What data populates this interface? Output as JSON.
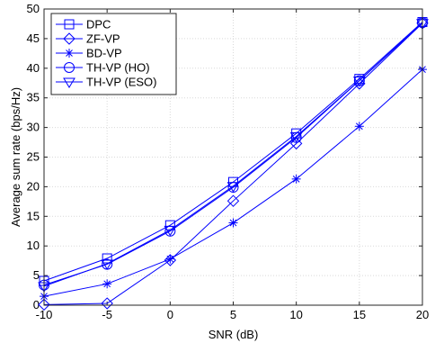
{
  "chart_data": {
    "type": "line",
    "xlabel": "SNR (dB)",
    "ylabel": "Average sum rate (bps/Hz)",
    "xlim": [
      -10,
      20
    ],
    "ylim": [
      0,
      50
    ],
    "x_ticks": [
      -10,
      -5,
      0,
      5,
      10,
      15,
      20
    ],
    "y_ticks": [
      0,
      5,
      10,
      15,
      20,
      25,
      30,
      35,
      40,
      45,
      50
    ],
    "grid": true,
    "legend_position": "top-left",
    "line_color": "#0000ff",
    "x": [
      -10,
      -5,
      0,
      5,
      10,
      15,
      20
    ],
    "series": [
      {
        "name": "DPC",
        "marker": "square",
        "values": [
          4.1,
          7.9,
          13.5,
          20.8,
          29.0,
          38.2,
          47.8
        ]
      },
      {
        "name": "ZF-VP",
        "marker": "diamond",
        "values": [
          0.1,
          0.3,
          7.6,
          17.6,
          27.3,
          37.4,
          47.6
        ]
      },
      {
        "name": "BD-VP",
        "marker": "asterisk",
        "values": [
          1.5,
          3.6,
          7.8,
          13.9,
          21.3,
          30.2,
          39.8
        ]
      },
      {
        "name": "TH-VP (HO)",
        "marker": "circle",
        "values": [
          3.4,
          6.9,
          12.5,
          19.9,
          28.3,
          37.9,
          47.7
        ]
      },
      {
        "name": "TH-VP (ESO)",
        "marker": "triangle-down",
        "values": [
          3.2,
          7.0,
          12.7,
          20.1,
          28.5,
          37.9,
          47.6
        ]
      }
    ]
  }
}
